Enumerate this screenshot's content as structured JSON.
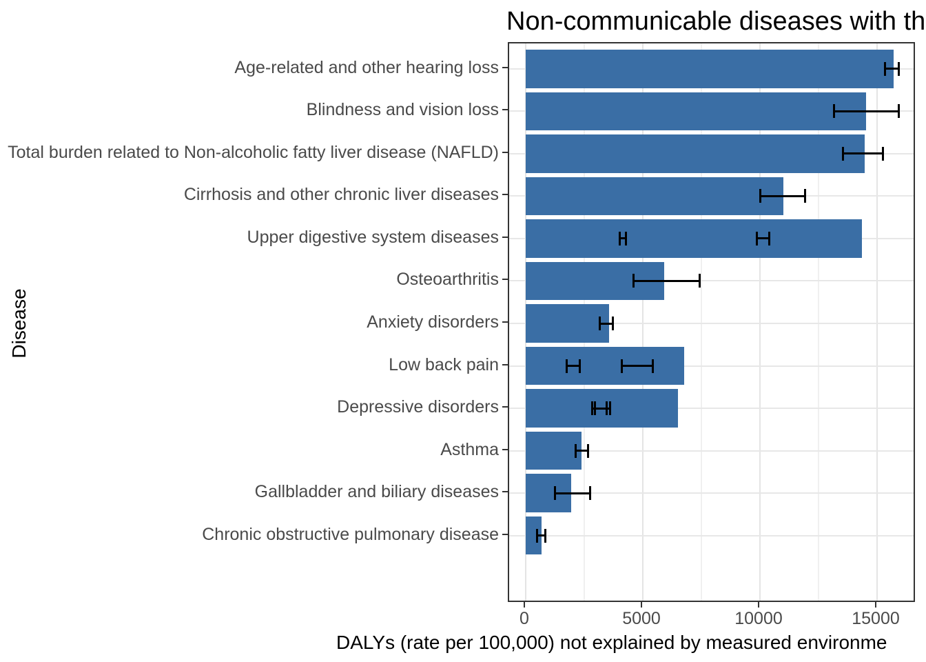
{
  "chart_data": {
    "type": "bar",
    "orientation": "horizontal",
    "title": "Non-communicable diseases with the g",
    "title_note": "text clipped at right edge of image",
    "xlabel": "DALYs (rate per 100,000) not explained by measured environme",
    "ylabel": "Disease",
    "x_ticks": [
      0,
      5000,
      10000,
      15000
    ],
    "x_tick_labels": [
      "0",
      "5000",
      "10000",
      "15000"
    ],
    "x_minor_ticks": [
      2500,
      7500,
      12500
    ],
    "xlim": [
      -706,
      16676
    ],
    "grid": "major and minor vertical gridlines, horizontal gridline at each category",
    "legend": "none",
    "bar_color": "#3A6EA5",
    "error_bar_color": "#000000",
    "categories": [
      "Age-related and other hearing loss",
      "Blindness and vision loss",
      "Total burden related to Non-alcoholic fatty liver disease (NAFLD)",
      "Cirrhosis and other chronic liver diseases",
      "Upper digestive system diseases",
      "Osteoarthritis",
      "Anxiety disorders",
      "Low back pain",
      "Depressive disorders",
      "Asthma",
      "Gallbladder and biliary diseases",
      "Chronic obstructive pulmonary disease"
    ],
    "values": [
      15700,
      14530,
      14470,
      11000,
      14360,
      5910,
      3560,
      6760,
      6500,
      2380,
      1940,
      680
    ],
    "error_bars": [
      [
        [
          15350,
          15930
        ]
      ],
      [
        [
          13160,
          15920
        ]
      ],
      [
        [
          13550,
          15240
        ]
      ],
      [
        [
          10000,
          11940
        ]
      ],
      [
        [
          4020,
          4290
        ],
        [
          9870,
          10410
        ]
      ],
      [
        [
          4590,
          7440
        ]
      ],
      [
        [
          3150,
          3710
        ]
      ],
      [
        [
          1740,
          2320
        ],
        [
          4110,
          5430
        ]
      ],
      [
        [
          2850,
          3470
        ],
        [
          2950,
          3590
        ]
      ],
      [
        [
          2120,
          2650
        ]
      ],
      [
        [
          1260,
          2740
        ]
      ],
      [
        [
          490,
          830
        ]
      ]
    ]
  }
}
